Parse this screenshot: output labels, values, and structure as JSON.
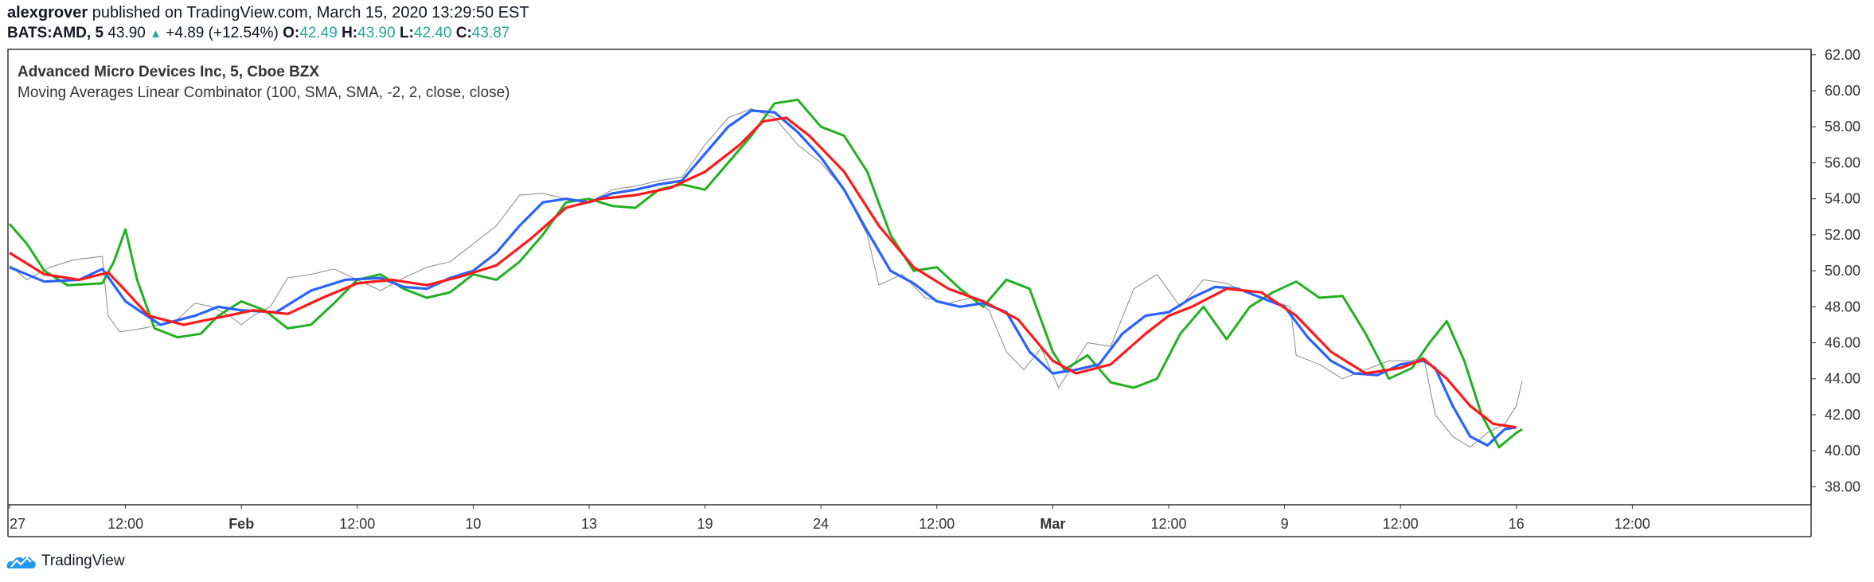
{
  "header": {
    "author": "alexgrover",
    "published_text": "published on TradingView.com, March 15, 2020 13:29:50 EST",
    "symbol": "BATS:AMD, 5",
    "last": "43.90",
    "change": "+4.89 (+12.54%)",
    "o_label": "O:",
    "o_value": "42.49",
    "h_label": "H:",
    "h_value": "43.90",
    "l_label": "L:",
    "l_value": "42.40",
    "c_label": "C:",
    "c_value": "43.87"
  },
  "legend": {
    "title": "Advanced Micro Devices Inc, 5, Cboe BZX",
    "indicator": "Moving Averages Linear Combinator (100, SMA, SMA, -2, 2, close, close)"
  },
  "brand": {
    "name": "TradingView"
  },
  "colors": {
    "price": "#888888",
    "blue": "#2962ff",
    "red": "#ff1a1a",
    "green": "#22b022",
    "axis": "#333333",
    "brand_blue": "#2196f3"
  },
  "chart_data": {
    "type": "line",
    "title": "Advanced Micro Devices Inc, 5, Cboe BZX",
    "xlabel": "",
    "ylabel": "",
    "x_ticks": [
      {
        "label": "27",
        "x": 0,
        "bold": false
      },
      {
        "label": "12:00",
        "x": 1,
        "bold": false
      },
      {
        "label": "Feb",
        "x": 2,
        "bold": true
      },
      {
        "label": "12:00",
        "x": 3,
        "bold": false
      },
      {
        "label": "10",
        "x": 4,
        "bold": false
      },
      {
        "label": "13",
        "x": 5,
        "bold": false
      },
      {
        "label": "19",
        "x": 6,
        "bold": false
      },
      {
        "label": "24",
        "x": 7,
        "bold": false
      },
      {
        "label": "12:00",
        "x": 8,
        "bold": false
      },
      {
        "label": "Mar",
        "x": 9,
        "bold": true
      },
      {
        "label": "12:00",
        "x": 10,
        "bold": false
      },
      {
        "label": "9",
        "x": 11,
        "bold": false
      },
      {
        "label": "12:00",
        "x": 12,
        "bold": false
      },
      {
        "label": "16",
        "x": 13,
        "bold": false
      },
      {
        "label": "12:00",
        "x": 14,
        "bold": false
      }
    ],
    "x_range": [
      0,
      14.9
    ],
    "y_ticks": [
      38,
      40,
      42,
      44,
      46,
      48,
      50,
      52,
      54,
      56,
      58,
      60,
      62
    ],
    "ylim": [
      37,
      62.3
    ],
    "grid": false,
    "series": [
      {
        "color": "#888888",
        "points": [
          [
            0,
            50.3
          ],
          [
            0.15,
            49.5
          ],
          [
            0.35,
            50.2
          ],
          [
            0.55,
            50.6
          ],
          [
            0.8,
            50.8
          ],
          [
            0.85,
            47.5
          ],
          [
            0.95,
            46.6
          ],
          [
            1.15,
            46.8
          ],
          [
            1.3,
            47.0
          ],
          [
            1.45,
            47.3
          ],
          [
            1.6,
            48.2
          ],
          [
            1.75,
            48.0
          ],
          [
            1.9,
            47.5
          ],
          [
            2.0,
            47.0
          ],
          [
            2.1,
            47.5
          ],
          [
            2.25,
            48.0
          ],
          [
            2.4,
            49.6
          ],
          [
            2.6,
            49.8
          ],
          [
            2.8,
            50.1
          ],
          [
            3.0,
            49.5
          ],
          [
            3.2,
            48.9
          ],
          [
            3.4,
            49.6
          ],
          [
            3.6,
            50.2
          ],
          [
            3.8,
            50.5
          ],
          [
            4.0,
            51.5
          ],
          [
            4.2,
            52.5
          ],
          [
            4.4,
            54.2
          ],
          [
            4.6,
            54.3
          ],
          [
            4.8,
            54.0
          ],
          [
            5.0,
            53.8
          ],
          [
            5.2,
            54.5
          ],
          [
            5.4,
            54.7
          ],
          [
            5.6,
            55.0
          ],
          [
            5.8,
            55.2
          ],
          [
            6.0,
            57.0
          ],
          [
            6.2,
            58.5
          ],
          [
            6.4,
            59.0
          ],
          [
            6.6,
            58.5
          ],
          [
            6.8,
            57.0
          ],
          [
            7.0,
            56.0
          ],
          [
            7.2,
            54.5
          ],
          [
            7.4,
            52.0
          ],
          [
            7.5,
            49.2
          ],
          [
            7.7,
            49.8
          ],
          [
            7.9,
            48.5
          ],
          [
            8.1,
            48.2
          ],
          [
            8.3,
            48.5
          ],
          [
            8.45,
            47.8
          ],
          [
            8.6,
            45.5
          ],
          [
            8.75,
            44.5
          ],
          [
            8.9,
            45.7
          ],
          [
            9.05,
            43.5
          ],
          [
            9.15,
            44.5
          ],
          [
            9.3,
            46.0
          ],
          [
            9.5,
            45.8
          ],
          [
            9.7,
            49.0
          ],
          [
            9.9,
            49.8
          ],
          [
            10.1,
            48.0
          ],
          [
            10.3,
            49.5
          ],
          [
            10.5,
            49.3
          ],
          [
            10.7,
            48.7
          ],
          [
            10.9,
            48.3
          ],
          [
            11.05,
            48.0
          ],
          [
            11.1,
            45.3
          ],
          [
            11.3,
            44.8
          ],
          [
            11.5,
            44.0
          ],
          [
            11.7,
            44.5
          ],
          [
            11.9,
            45.0
          ],
          [
            12.1,
            45.0
          ],
          [
            12.2,
            45.2
          ],
          [
            12.3,
            42.0
          ],
          [
            12.45,
            40.8
          ],
          [
            12.6,
            40.2
          ],
          [
            12.75,
            41.0
          ],
          [
            12.9,
            41.5
          ],
          [
            13.0,
            42.5
          ],
          [
            13.05,
            43.9
          ]
        ]
      },
      {
        "color": "#2962ff",
        "points": [
          [
            0,
            50.2
          ],
          [
            0.3,
            49.4
          ],
          [
            0.6,
            49.5
          ],
          [
            0.8,
            50.1
          ],
          [
            1.0,
            48.3
          ],
          [
            1.3,
            47.0
          ],
          [
            1.6,
            47.5
          ],
          [
            1.8,
            48.0
          ],
          [
            2.0,
            47.8
          ],
          [
            2.3,
            47.7
          ],
          [
            2.6,
            48.9
          ],
          [
            2.9,
            49.5
          ],
          [
            3.2,
            49.6
          ],
          [
            3.4,
            49.1
          ],
          [
            3.6,
            49.0
          ],
          [
            3.8,
            49.6
          ],
          [
            4.0,
            50.0
          ],
          [
            4.2,
            51.0
          ],
          [
            4.4,
            52.5
          ],
          [
            4.6,
            53.8
          ],
          [
            4.8,
            54.0
          ],
          [
            5.0,
            53.8
          ],
          [
            5.2,
            54.3
          ],
          [
            5.4,
            54.5
          ],
          [
            5.6,
            54.8
          ],
          [
            5.8,
            55.0
          ],
          [
            6.0,
            56.5
          ],
          [
            6.2,
            58.0
          ],
          [
            6.4,
            58.9
          ],
          [
            6.6,
            58.8
          ],
          [
            6.8,
            57.7
          ],
          [
            7.0,
            56.3
          ],
          [
            7.2,
            54.5
          ],
          [
            7.4,
            52.2
          ],
          [
            7.6,
            50.0
          ],
          [
            7.8,
            49.3
          ],
          [
            8.0,
            48.3
          ],
          [
            8.2,
            48.0
          ],
          [
            8.4,
            48.2
          ],
          [
            8.6,
            47.7
          ],
          [
            8.8,
            45.5
          ],
          [
            9.0,
            44.3
          ],
          [
            9.2,
            44.5
          ],
          [
            9.4,
            44.8
          ],
          [
            9.6,
            46.5
          ],
          [
            9.8,
            47.5
          ],
          [
            10.0,
            47.7
          ],
          [
            10.2,
            48.5
          ],
          [
            10.4,
            49.1
          ],
          [
            10.6,
            49.0
          ],
          [
            10.8,
            48.5
          ],
          [
            11.0,
            48.0
          ],
          [
            11.2,
            46.3
          ],
          [
            11.4,
            45.0
          ],
          [
            11.6,
            44.3
          ],
          [
            11.8,
            44.2
          ],
          [
            12.0,
            44.8
          ],
          [
            12.2,
            45.0
          ],
          [
            12.3,
            44.6
          ],
          [
            12.45,
            42.5
          ],
          [
            12.6,
            40.8
          ],
          [
            12.75,
            40.3
          ],
          [
            12.9,
            41.2
          ],
          [
            13.0,
            41.3
          ]
        ]
      },
      {
        "color": "#ff1a1a",
        "points": [
          [
            0,
            51.0
          ],
          [
            0.3,
            49.8
          ],
          [
            0.6,
            49.5
          ],
          [
            0.85,
            49.9
          ],
          [
            1.0,
            48.9
          ],
          [
            1.2,
            47.5
          ],
          [
            1.5,
            47.0
          ],
          [
            1.8,
            47.4
          ],
          [
            2.1,
            47.8
          ],
          [
            2.4,
            47.6
          ],
          [
            2.7,
            48.5
          ],
          [
            3.0,
            49.3
          ],
          [
            3.3,
            49.5
          ],
          [
            3.6,
            49.2
          ],
          [
            3.9,
            49.7
          ],
          [
            4.2,
            50.3
          ],
          [
            4.5,
            51.8
          ],
          [
            4.8,
            53.5
          ],
          [
            5.1,
            54.0
          ],
          [
            5.4,
            54.2
          ],
          [
            5.7,
            54.6
          ],
          [
            6.0,
            55.5
          ],
          [
            6.3,
            57.0
          ],
          [
            6.5,
            58.3
          ],
          [
            6.7,
            58.5
          ],
          [
            6.9,
            57.5
          ],
          [
            7.2,
            55.5
          ],
          [
            7.5,
            52.5
          ],
          [
            7.8,
            50.2
          ],
          [
            8.1,
            49.0
          ],
          [
            8.4,
            48.3
          ],
          [
            8.7,
            47.3
          ],
          [
            9.0,
            45.0
          ],
          [
            9.2,
            44.3
          ],
          [
            9.5,
            44.8
          ],
          [
            9.8,
            46.5
          ],
          [
            10.0,
            47.5
          ],
          [
            10.2,
            48.0
          ],
          [
            10.5,
            49.0
          ],
          [
            10.8,
            48.8
          ],
          [
            11.1,
            47.5
          ],
          [
            11.4,
            45.5
          ],
          [
            11.7,
            44.3
          ],
          [
            12.0,
            44.6
          ],
          [
            12.2,
            45.1
          ],
          [
            12.4,
            44.0
          ],
          [
            12.6,
            42.5
          ],
          [
            12.8,
            41.5
          ],
          [
            13.0,
            41.3
          ]
        ]
      },
      {
        "color": "#22b022",
        "points": [
          [
            0,
            52.6
          ],
          [
            0.15,
            51.5
          ],
          [
            0.3,
            50.0
          ],
          [
            0.5,
            49.2
          ],
          [
            0.8,
            49.3
          ],
          [
            0.9,
            50.5
          ],
          [
            1.0,
            52.3
          ],
          [
            1.1,
            49.5
          ],
          [
            1.25,
            46.8
          ],
          [
            1.45,
            46.3
          ],
          [
            1.65,
            46.5
          ],
          [
            1.8,
            47.5
          ],
          [
            2.0,
            48.3
          ],
          [
            2.2,
            47.8
          ],
          [
            2.4,
            46.8
          ],
          [
            2.6,
            47.0
          ],
          [
            2.8,
            48.2
          ],
          [
            3.0,
            49.5
          ],
          [
            3.2,
            49.8
          ],
          [
            3.4,
            49.0
          ],
          [
            3.6,
            48.5
          ],
          [
            3.8,
            48.8
          ],
          [
            4.0,
            49.8
          ],
          [
            4.2,
            49.5
          ],
          [
            4.4,
            50.5
          ],
          [
            4.6,
            52.0
          ],
          [
            4.8,
            53.8
          ],
          [
            5.0,
            54.0
          ],
          [
            5.2,
            53.6
          ],
          [
            5.4,
            53.5
          ],
          [
            5.6,
            54.5
          ],
          [
            5.8,
            54.8
          ],
          [
            6.0,
            54.5
          ],
          [
            6.2,
            56.0
          ],
          [
            6.4,
            57.5
          ],
          [
            6.6,
            59.3
          ],
          [
            6.8,
            59.5
          ],
          [
            7.0,
            58.0
          ],
          [
            7.2,
            57.5
          ],
          [
            7.4,
            55.5
          ],
          [
            7.6,
            52.0
          ],
          [
            7.8,
            50.0
          ],
          [
            8.0,
            50.2
          ],
          [
            8.2,
            49.0
          ],
          [
            8.4,
            48.0
          ],
          [
            8.6,
            49.5
          ],
          [
            8.8,
            49.0
          ],
          [
            9.0,
            45.5
          ],
          [
            9.1,
            44.5
          ],
          [
            9.3,
            45.3
          ],
          [
            9.5,
            43.8
          ],
          [
            9.7,
            43.5
          ],
          [
            9.9,
            44.0
          ],
          [
            10.1,
            46.5
          ],
          [
            10.3,
            48.0
          ],
          [
            10.5,
            46.2
          ],
          [
            10.7,
            48.0
          ],
          [
            10.9,
            48.8
          ],
          [
            11.1,
            49.4
          ],
          [
            11.3,
            48.5
          ],
          [
            11.5,
            48.6
          ],
          [
            11.7,
            46.5
          ],
          [
            11.9,
            44.0
          ],
          [
            12.1,
            44.6
          ],
          [
            12.25,
            46.0
          ],
          [
            12.4,
            47.2
          ],
          [
            12.55,
            45.0
          ],
          [
            12.7,
            42.0
          ],
          [
            12.85,
            40.2
          ],
          [
            13.0,
            41.0
          ],
          [
            13.05,
            41.2
          ]
        ]
      }
    ]
  }
}
